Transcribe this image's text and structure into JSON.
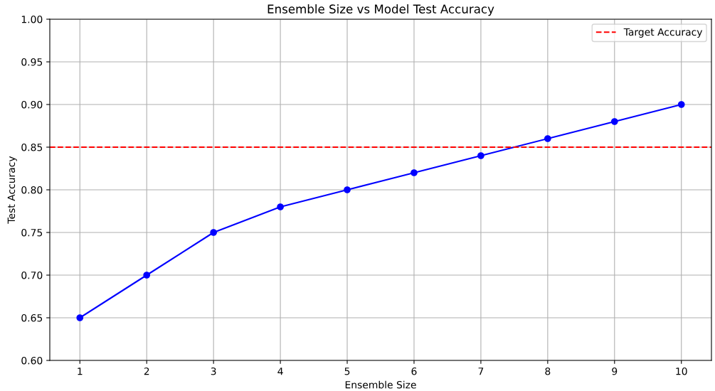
{
  "chart_data": {
    "type": "line",
    "title": "Ensemble Size vs Model Test Accuracy",
    "xlabel": "Ensemble Size",
    "ylabel": "Test Accuracy",
    "x": [
      1,
      2,
      3,
      4,
      5,
      6,
      7,
      8,
      9,
      10
    ],
    "series": [
      {
        "color": "#0000ff",
        "values": [
          0.65,
          0.7,
          0.75,
          0.78,
          0.8,
          0.82,
          0.84,
          0.86,
          0.88,
          0.9
        ]
      }
    ],
    "xlim": [
      0.55,
      10.45
    ],
    "xticks": [
      1,
      2,
      3,
      4,
      5,
      6,
      7,
      8,
      9,
      10
    ],
    "ylim": [
      0.6,
      1.0
    ],
    "yticks": [
      {
        "value": 0.6,
        "label": "0.60"
      },
      {
        "value": 0.65,
        "label": "0.65"
      },
      {
        "value": 0.7,
        "label": "0.70"
      },
      {
        "value": 0.75,
        "label": "0.75"
      },
      {
        "value": 0.8,
        "label": "0.80"
      },
      {
        "value": 0.85,
        "label": "0.85"
      },
      {
        "value": 0.9,
        "label": "0.90"
      },
      {
        "value": 0.95,
        "label": "0.95"
      },
      {
        "value": 1.0,
        "label": "1.00"
      }
    ],
    "ref_lines": [
      {
        "axis": "y",
        "value": 0.85,
        "label": "Target Accuracy",
        "color": "#ff0000",
        "line_style": "dashed"
      }
    ],
    "grid": true,
    "legend": "top right",
    "marker": "circle",
    "line_style": "solid"
  }
}
